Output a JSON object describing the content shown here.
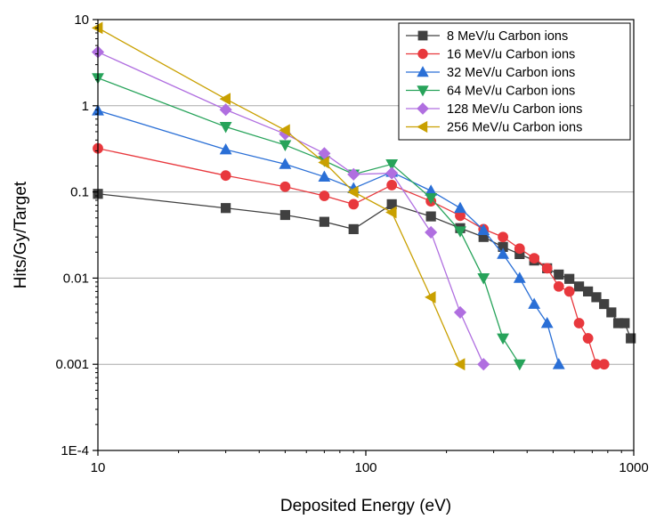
{
  "chart_data": {
    "type": "line",
    "xlabel": "Deposited Energy (eV)",
    "ylabel": "Hits/Gy/Target",
    "x_scale": "log",
    "y_scale": "log",
    "xlim": [
      10,
      1000
    ],
    "ylim": [
      0.0001,
      10
    ],
    "x_ticks": [
      "10",
      "100",
      "1000"
    ],
    "y_ticks": [
      "10",
      "1",
      "0.1",
      "0.01",
      "0.001",
      "1E-4"
    ],
    "grid": "horizontal",
    "legend_position": "top-right",
    "series": [
      {
        "name": "8 MeV/u Carbon ions",
        "color": "#404040",
        "marker": "square",
        "x": [
          10,
          30,
          50,
          70,
          90,
          125,
          175,
          225,
          275,
          325,
          375,
          425,
          475,
          525,
          575,
          625,
          675,
          725,
          775,
          825,
          875,
          925,
          975
        ],
        "y": [
          0.095,
          0.065,
          0.054,
          0.045,
          0.037,
          0.072,
          0.052,
          0.038,
          0.03,
          0.023,
          0.019,
          0.016,
          0.013,
          0.011,
          0.0098,
          0.008,
          0.007,
          0.006,
          0.005,
          0.004,
          0.003,
          0.003,
          0.002
        ]
      },
      {
        "name": "16 MeV/u Carbon ions",
        "color": "#e8383d",
        "marker": "circle",
        "x": [
          10,
          30,
          50,
          70,
          90,
          125,
          175,
          225,
          275,
          325,
          375,
          425,
          475,
          525,
          575,
          625,
          675,
          725,
          775
        ],
        "y": [
          0.32,
          0.155,
          0.115,
          0.09,
          0.072,
          0.12,
          0.078,
          0.053,
          0.037,
          0.03,
          0.022,
          0.017,
          0.013,
          0.008,
          0.007,
          0.003,
          0.002,
          0.001,
          0.001
        ]
      },
      {
        "name": "32 MeV/u Carbon ions",
        "color": "#2a6fd6",
        "marker": "triangle-up",
        "x": [
          10,
          30,
          50,
          70,
          90,
          125,
          175,
          225,
          275,
          325,
          375,
          425,
          475,
          525
        ],
        "y": [
          0.88,
          0.31,
          0.21,
          0.15,
          0.11,
          0.17,
          0.103,
          0.065,
          0.036,
          0.019,
          0.01,
          0.005,
          0.003,
          0.001
        ]
      },
      {
        "name": "64 MeV/u Carbon ions",
        "color": "#27a35a",
        "marker": "triangle-down",
        "x": [
          10,
          30,
          50,
          70,
          90,
          125,
          175,
          225,
          275,
          325,
          375
        ],
        "y": [
          2.1,
          0.57,
          0.35,
          0.23,
          0.16,
          0.21,
          0.085,
          0.035,
          0.01,
          0.002,
          0.001
        ]
      },
      {
        "name": "128 MeV/u Carbon ions",
        "color": "#b06fe0",
        "marker": "diamond",
        "x": [
          10,
          30,
          50,
          70,
          90,
          125,
          175,
          225,
          275
        ],
        "y": [
          4.2,
          0.9,
          0.47,
          0.28,
          0.16,
          0.165,
          0.034,
          0.004,
          0.001
        ]
      },
      {
        "name": "256 MeV/u Carbon ions",
        "color": "#c9a000",
        "marker": "triangle-left",
        "x": [
          10,
          30,
          50,
          70,
          90,
          125,
          175,
          225
        ],
        "y": [
          8.0,
          1.2,
          0.52,
          0.22,
          0.1,
          0.058,
          0.006,
          0.001
        ]
      }
    ]
  }
}
